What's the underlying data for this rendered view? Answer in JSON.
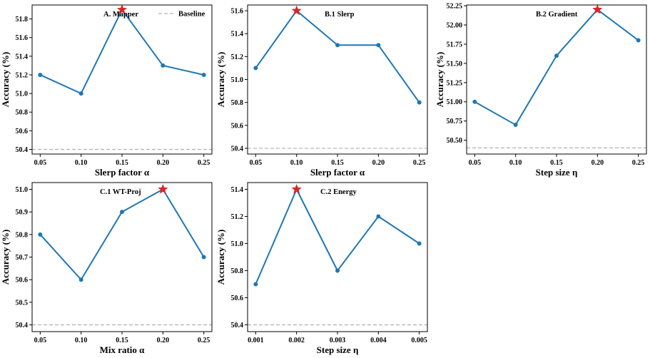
{
  "colors": {
    "series": "#1f77b4",
    "best_marker": "#d62728",
    "baseline": "#b0b0b0"
  },
  "legend": {
    "baseline_label": "Baseline"
  },
  "chart_data": [
    {
      "type": "line",
      "title": "A. Mapper",
      "xlabel": "Slerp factor α",
      "ylabel": "Accuracy (%)",
      "x": [
        0.05,
        0.1,
        0.15,
        0.2,
        0.25
      ],
      "x_tick_labels": [
        "0.05",
        "0.10",
        "0.15",
        "0.20",
        "0.25"
      ],
      "values": [
        51.2,
        51.0,
        51.9,
        51.3,
        51.2
      ],
      "best_index": 2,
      "baseline": 50.4,
      "ylim": [
        50.35,
        51.95
      ],
      "y_ticks": [
        50.4,
        50.6,
        50.8,
        51.0,
        51.2,
        51.4,
        51.6,
        51.8
      ],
      "y_tick_labels": [
        "50.4",
        "50.6",
        "50.8",
        "51.0",
        "51.2",
        "51.4",
        "51.6",
        "51.8"
      ],
      "legend": "top-right"
    },
    {
      "type": "line",
      "title": "B.1 Slerp",
      "xlabel": "Slerp factor α",
      "ylabel": "Accuracy (%)",
      "x": [
        0.05,
        0.1,
        0.15,
        0.2,
        0.25
      ],
      "x_tick_labels": [
        "0.05",
        "0.10",
        "0.15",
        "0.20",
        "0.25"
      ],
      "values": [
        51.1,
        51.6,
        51.3,
        51.3,
        50.8
      ],
      "best_index": 1,
      "baseline": 50.4,
      "ylim": [
        50.35,
        51.65
      ],
      "y_ticks": [
        50.4,
        50.6,
        50.8,
        51.0,
        51.2,
        51.4,
        51.6
      ],
      "y_tick_labels": [
        "50.4",
        "50.6",
        "50.8",
        "51.0",
        "51.2",
        "51.4",
        "51.6"
      ]
    },
    {
      "type": "line",
      "title": "B.2 Gradient",
      "xlabel": "Step size η",
      "ylabel": "Accuracy (%)",
      "x": [
        0.05,
        0.1,
        0.15,
        0.2,
        0.25
      ],
      "x_tick_labels": [
        "0.05",
        "0.10",
        "0.15",
        "0.20",
        "0.25"
      ],
      "values": [
        51.0,
        50.7,
        51.6,
        52.2,
        51.8
      ],
      "best_index": 3,
      "baseline": 50.4,
      "ylim": [
        50.32,
        52.26
      ],
      "y_ticks": [
        50.5,
        50.75,
        51.0,
        51.25,
        51.5,
        51.75,
        52.0,
        52.25
      ],
      "y_tick_labels": [
        "50.50",
        "50.75",
        "51.00",
        "51.25",
        "51.50",
        "51.75",
        "52.00",
        "52.25"
      ]
    },
    {
      "type": "line",
      "title": "C.1 WT-Proj",
      "xlabel": "Mix ratio α",
      "ylabel": "Accuracy (%)",
      "x": [
        0.05,
        0.1,
        0.15,
        0.2,
        0.25
      ],
      "x_tick_labels": [
        "0.05",
        "0.10",
        "0.15",
        "0.20",
        "0.25"
      ],
      "values": [
        50.8,
        50.6,
        50.9,
        51.0,
        50.7
      ],
      "best_index": 3,
      "baseline": 50.4,
      "ylim": [
        50.37,
        51.03
      ],
      "y_ticks": [
        50.4,
        50.5,
        50.6,
        50.7,
        50.8,
        50.9,
        51.0
      ],
      "y_tick_labels": [
        "50.4",
        "50.5",
        "50.6",
        "50.7",
        "50.8",
        "50.9",
        "51.0"
      ]
    },
    {
      "type": "line",
      "title": "C.2 Energy",
      "xlabel": "Step size η",
      "ylabel": "Accuracy (%)",
      "x": [
        0.001,
        0.002,
        0.003,
        0.004,
        0.005
      ],
      "x_tick_labels": [
        "0.001",
        "0.002",
        "0.003",
        "0.004",
        "0.005"
      ],
      "values": [
        50.7,
        51.4,
        50.8,
        51.2,
        51.0
      ],
      "best_index": 1,
      "baseline": 50.4,
      "ylim": [
        50.35,
        51.45
      ],
      "y_ticks": [
        50.4,
        50.6,
        50.8,
        51.0,
        51.2,
        51.4
      ],
      "y_tick_labels": [
        "50.4",
        "50.6",
        "50.8",
        "51.0",
        "51.2",
        "51.4"
      ]
    }
  ]
}
